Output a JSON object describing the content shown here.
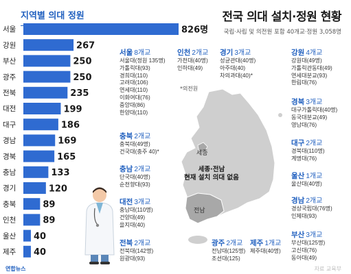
{
  "header": {
    "left_title": "지역별 의대 정원",
    "title": "전국 의대 설치·정원 현황",
    "subtitle": "국립·사립 및 의전원 포함 40개교·정원 3,058명"
  },
  "chart_data": {
    "type": "bar",
    "orientation": "horizontal",
    "title": "지역별 의대 정원",
    "categories": [
      "서울",
      "강원",
      "부산",
      "광주",
      "전북",
      "대전",
      "대구",
      "경남",
      "경북",
      "충남",
      "경기",
      "충북",
      "인천",
      "울산",
      "제주"
    ],
    "values": [
      826,
      267,
      250,
      250,
      235,
      199,
      186,
      169,
      165,
      133,
      120,
      89,
      89,
      40,
      40
    ],
    "value_labels": [
      "826명",
      "267",
      "250",
      "250",
      "235",
      "199",
      "186",
      "169",
      "165",
      "133",
      "120",
      "89",
      "89",
      "40",
      "40"
    ],
    "xlim": [
      0,
      826
    ],
    "grid": false,
    "legend": "none",
    "bar_color": "#2f6bd1"
  },
  "map": {
    "sejong": "세종",
    "sejong_note_line1": "세종·전남",
    "sejong_note_line2": "현재 설치 의대 없음",
    "jeonnam": "전남",
    "legend": "*의전원",
    "land_color": "#cfcfcf",
    "highlight_color": "#a8a8a8"
  },
  "regions": {
    "seoul": {
      "name": "서울",
      "count": "8개교",
      "schools": [
        "서울대(정원 135명)",
        "가톨릭대(93)",
        "경희대(110)",
        "고려대(106)",
        "연세대(110)",
        "이화여대(76)",
        "중앙대(86)",
        "한양대(110)"
      ]
    },
    "chungbuk": {
      "name": "충북",
      "count": "2개교",
      "schools": [
        "충북대(49명)",
        "건국대(충주 40)*"
      ]
    },
    "chungnam": {
      "name": "충남",
      "count": "2개교",
      "schools": [
        "단국대(40명)",
        "순천향대(93)"
      ]
    },
    "daejeon": {
      "name": "대전",
      "count": "3개교",
      "schools": [
        "충남대(110명)",
        "건양대(49)",
        "을지대(40)"
      ]
    },
    "jeonbuk": {
      "name": "전북",
      "count": "2개교",
      "schools": [
        "전북대(142명)",
        "원광대(93)"
      ]
    },
    "incheon": {
      "name": "인천",
      "count": "2개교",
      "schools": [
        "가천대(40명)",
        "인하대(49)"
      ]
    },
    "gyeonggi": {
      "name": "경기",
      "count": "3개교",
      "schools": [
        "성균관대(40명)",
        "아주대(40)",
        "차의과대(40)*"
      ]
    },
    "gangwon": {
      "name": "강원",
      "count": "4개교",
      "schools": [
        "강원대(49명)",
        "가톨릭관동대(49)",
        "연세대분교(93)",
        "한림대(76)"
      ]
    },
    "gyeongbuk": {
      "name": "경북",
      "count": "3개교",
      "schools": [
        "대구가톨릭대(40명)",
        "동국대분교(49)",
        "영남대(76)"
      ]
    },
    "daegu": {
      "name": "대구",
      "count": "2개교",
      "schools": [
        "경북대(110명)",
        "계명대(76)"
      ]
    },
    "ulsan": {
      "name": "울산",
      "count": "1개교",
      "schools": [
        "울산대(40명)"
      ]
    },
    "gyeongnam": {
      "name": "경남",
      "count": "2개교",
      "schools": [
        "경상국립대(76명)",
        "인제대(93)"
      ]
    },
    "busan": {
      "name": "부산",
      "count": "3개교",
      "schools": [
        "부산대(125명)",
        "고신대(76)",
        "동아대(49)"
      ]
    },
    "gwangju": {
      "name": "광주",
      "count": "2개교",
      "schools": [
        "전남대(125명)",
        "조선대(125)"
      ]
    },
    "jeju": {
      "name": "제주",
      "count": "1개교",
      "schools": [
        "제주대(40명)"
      ]
    }
  },
  "footer": {
    "source_left": "연합뉴스",
    "source_right": "자료 교육부"
  }
}
